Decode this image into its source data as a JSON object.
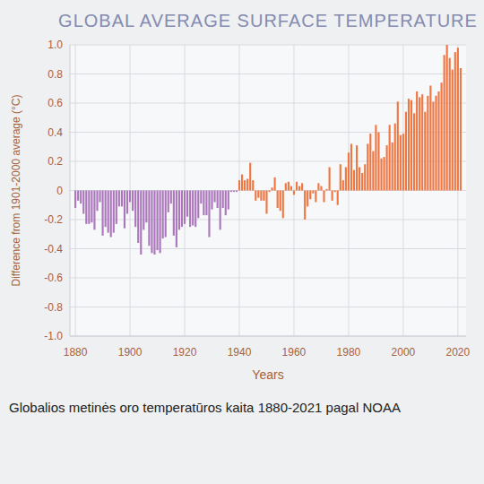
{
  "chart_data": {
    "type": "bar",
    "title": "GLOBAL AVERAGE SURFACE TEMPERATURE",
    "y_label": "Difference from 1901-2000 average (°C)",
    "x_label": "Years",
    "annotations": [
      "Globalios metinės oro temperatūros kaita 1880-2021 pagal NOAA"
    ],
    "x": [
      1880,
      1881,
      1882,
      1883,
      1884,
      1885,
      1886,
      1887,
      1888,
      1889,
      1890,
      1891,
      1892,
      1893,
      1894,
      1895,
      1896,
      1897,
      1898,
      1899,
      1900,
      1901,
      1902,
      1903,
      1904,
      1905,
      1906,
      1907,
      1908,
      1909,
      1910,
      1911,
      1912,
      1913,
      1914,
      1915,
      1916,
      1917,
      1918,
      1919,
      1920,
      1921,
      1922,
      1923,
      1924,
      1925,
      1926,
      1927,
      1928,
      1929,
      1930,
      1931,
      1932,
      1933,
      1934,
      1935,
      1936,
      1937,
      1938,
      1939,
      1940,
      1941,
      1942,
      1943,
      1944,
      1945,
      1946,
      1947,
      1948,
      1949,
      1950,
      1951,
      1952,
      1953,
      1954,
      1955,
      1956,
      1957,
      1958,
      1959,
      1960,
      1961,
      1962,
      1963,
      1964,
      1965,
      1966,
      1967,
      1968,
      1969,
      1970,
      1971,
      1972,
      1973,
      1974,
      1975,
      1976,
      1977,
      1978,
      1979,
      1980,
      1981,
      1982,
      1983,
      1984,
      1985,
      1986,
      1987,
      1988,
      1989,
      1990,
      1991,
      1992,
      1993,
      1994,
      1995,
      1996,
      1997,
      1998,
      1999,
      2000,
      2001,
      2002,
      2003,
      2004,
      2005,
      2006,
      2007,
      2008,
      2009,
      2010,
      2011,
      2012,
      2013,
      2014,
      2015,
      2016,
      2017,
      2018,
      2019,
      2020,
      2021
    ],
    "values": [
      -0.12,
      -0.07,
      -0.09,
      -0.16,
      -0.23,
      -0.23,
      -0.22,
      -0.27,
      -0.14,
      -0.08,
      -0.31,
      -0.25,
      -0.29,
      -0.32,
      -0.29,
      -0.23,
      -0.11,
      -0.11,
      -0.26,
      -0.16,
      -0.08,
      -0.14,
      -0.25,
      -0.36,
      -0.44,
      -0.27,
      -0.22,
      -0.38,
      -0.43,
      -0.44,
      -0.41,
      -0.43,
      -0.33,
      -0.32,
      -0.15,
      -0.09,
      -0.31,
      -0.39,
      -0.27,
      -0.25,
      -0.23,
      -0.18,
      -0.25,
      -0.24,
      -0.25,
      -0.19,
      -0.09,
      -0.17,
      -0.17,
      -0.32,
      -0.13,
      -0.08,
      -0.12,
      -0.27,
      -0.12,
      -0.17,
      -0.13,
      -0.01,
      -0.01,
      -0.01,
      0.07,
      0.11,
      0.07,
      0.08,
      0.19,
      0.07,
      -0.07,
      -0.05,
      -0.07,
      -0.07,
      -0.16,
      -0.01,
      0.02,
      0.09,
      -0.12,
      -0.14,
      -0.19,
      0.05,
      0.06,
      0.03,
      -0.03,
      0.06,
      0.03,
      0.05,
      -0.2,
      -0.11,
      -0.06,
      -0.02,
      -0.08,
      0.05,
      0.03,
      -0.08,
      0.01,
      0.16,
      -0.07,
      -0.01,
      -0.1,
      0.18,
      0.07,
      0.16,
      0.26,
      0.32,
      0.14,
      0.31,
      0.16,
      0.12,
      0.18,
      0.32,
      0.39,
      0.27,
      0.45,
      0.4,
      0.22,
      0.23,
      0.31,
      0.45,
      0.33,
      0.46,
      0.61,
      0.38,
      0.39,
      0.54,
      0.63,
      0.62,
      0.53,
      0.68,
      0.64,
      0.66,
      0.54,
      0.65,
      0.72,
      0.61,
      0.65,
      0.68,
      0.74,
      0.93,
      1.0,
      0.91,
      0.83,
      0.95,
      0.98,
      0.84
    ],
    "colors": [
      "#a7b",
      "#a7b",
      "#a7b",
      "#a7b",
      "#a7b",
      "#a7b",
      "#a7b",
      "#a7b",
      "#a7b",
      "#a7b",
      "#a7b",
      "#a7b",
      "#a7b",
      "#a7b",
      "#a7b",
      "#a7b",
      "#a7b",
      "#a7b",
      "#a7b",
      "#a7b",
      "#a7b",
      "#a7b",
      "#a7b",
      "#a7b",
      "#a7b",
      "#a7b",
      "#a7b",
      "#a7b",
      "#a7b",
      "#a7b",
      "#a7b",
      "#a7b",
      "#a7b",
      "#a7b",
      "#a7b",
      "#a7b",
      "#a7b",
      "#a7b",
      "#a7b",
      "#a7b",
      "#a7b",
      "#a7b",
      "#a7b",
      "#a7b",
      "#a7b",
      "#a7b",
      "#a7b",
      "#a7b",
      "#a7b",
      "#a7b",
      "#a7b",
      "#a7b",
      "#a7b",
      "#a7b",
      "#a7b",
      "#a7b",
      "#a7b",
      "#a7b",
      "#a7b",
      "#a7b",
      "#e74",
      "#e74",
      "#e74",
      "#e74",
      "#e74",
      "#e74",
      "#e74",
      "#e74",
      "#e74",
      "#e74",
      "#e74",
      "#e74",
      "#e74",
      "#e74",
      "#e74",
      "#e74",
      "#e74",
      "#e74",
      "#e74",
      "#e74",
      "#e74",
      "#e74",
      "#e74",
      "#e74",
      "#e74",
      "#e74",
      "#e74",
      "#e74",
      "#e74",
      "#e74",
      "#e74",
      "#e74",
      "#e74",
      "#e74",
      "#e74",
      "#e74",
      "#e74",
      "#e74",
      "#e74",
      "#e74",
      "#e74",
      "#e74",
      "#e74",
      "#e74",
      "#e74",
      "#e74",
      "#e74",
      "#e74",
      "#e74",
      "#e74",
      "#e74",
      "#e74",
      "#e74",
      "#e74",
      "#e74",
      "#e74",
      "#e74",
      "#e74",
      "#e74",
      "#e74",
      "#e74",
      "#e74",
      "#e74",
      "#e74",
      "#e74",
      "#e74",
      "#e74",
      "#e74",
      "#e74",
      "#e74",
      "#e74",
      "#e74",
      "#e74",
      "#e74",
      "#e74",
      "#e74",
      "#e74",
      "#e74",
      "#e74",
      "#e74",
      "#e74",
      "#e74"
    ],
    "xlim": [
      1878,
      2023
    ],
    "xticks": [
      1880,
      1900,
      1920,
      1940,
      1960,
      1980,
      2000,
      2020
    ],
    "ylim": [
      -1.0,
      1.0
    ],
    "yticks": [
      {
        "value": -1.0,
        "label": "-1.0"
      },
      -0.8,
      -0.6,
      -0.4,
      -0.2,
      0,
      0.2,
      0.4,
      0.6,
      0.8,
      {
        "value": 1.0,
        "label": "1.0"
      }
    ],
    "grid": true
  }
}
